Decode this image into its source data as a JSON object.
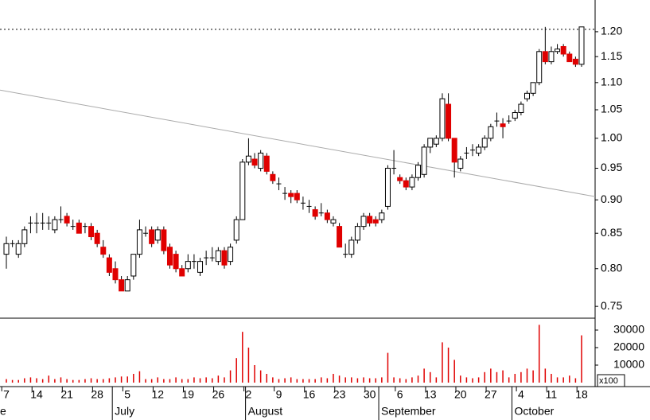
{
  "chart_data": {
    "type": "candlestick",
    "log_scale": true,
    "ylim": [
      0.735,
      1.267
    ],
    "yticks": [
      0.75,
      {
        "value": 0.8,
        "label": "0.80"
      },
      0.85,
      {
        "value": 0.9,
        "label": "0.90"
      },
      0.95,
      {
        "value": 1.0,
        "label": "1.00"
      },
      1.05,
      {
        "value": 1.1,
        "label": "1.10"
      },
      1.15,
      {
        "value": 1.2,
        "label": "1.20"
      }
    ],
    "volume_ylim": [
      0,
      36800
    ],
    "volume_yticks": [
      10000,
      20000,
      30000
    ],
    "volume_unit_label": "x100",
    "up_color": "#ffffff",
    "down_color": "#e00000",
    "volume_color": "#e00000",
    "resistance": 1.205,
    "trendline": {
      "start": 1.086,
      "end": 0.905
    },
    "categories": [
      "7",
      null,
      null,
      null,
      null,
      "14",
      null,
      null,
      null,
      null,
      "21",
      null,
      null,
      null,
      null,
      "28",
      null,
      null,
      null,
      null,
      "5",
      null,
      null,
      null,
      null,
      "12",
      null,
      null,
      null,
      null,
      "19",
      null,
      null,
      null,
      null,
      "26",
      null,
      null,
      null,
      null,
      "2",
      null,
      null,
      null,
      null,
      "9",
      null,
      null,
      null,
      null,
      "16",
      null,
      null,
      null,
      null,
      "23",
      null,
      null,
      null,
      null,
      "30",
      null,
      null,
      null,
      null,
      "6",
      null,
      null,
      null,
      null,
      "13",
      null,
      null,
      null,
      null,
      "20",
      null,
      null,
      null,
      null,
      "27",
      null,
      null,
      null,
      null,
      "4",
      null,
      null,
      null,
      null,
      "11",
      null,
      null,
      null,
      null,
      "18"
    ],
    "month_labels": [
      {
        "label": "e",
        "category_index": 0
      },
      {
        "label": "July",
        "category_index": 18
      },
      {
        "label": "August",
        "category_index": 40
      },
      {
        "label": "September",
        "category_index": 62
      },
      {
        "label": "October",
        "category_index": 84
      }
    ],
    "ohlc": [
      [
        0.82,
        0.845,
        0.8,
        0.835
      ],
      [
        0.835,
        0.84,
        0.83,
        0.835
      ],
      [
        0.82,
        0.84,
        0.815,
        0.835
      ],
      [
        0.835,
        0.86,
        0.83,
        0.855
      ],
      [
        0.865,
        0.875,
        0.85,
        0.865
      ],
      [
        0.865,
        0.88,
        0.85,
        0.865
      ],
      [
        0.865,
        0.88,
        0.855,
        0.865
      ],
      [
        0.865,
        0.875,
        0.855,
        0.865
      ],
      [
        0.855,
        0.875,
        0.85,
        0.87
      ],
      [
        0.87,
        0.89,
        0.865,
        0.87
      ],
      [
        0.875,
        0.88,
        0.86,
        0.865
      ],
      [
        0.86,
        0.87,
        0.855,
        0.86
      ],
      [
        0.865,
        0.87,
        0.85,
        0.85
      ],
      [
        0.86,
        0.865,
        0.85,
        0.86
      ],
      [
        0.86,
        0.865,
        0.84,
        0.845
      ],
      [
        0.85,
        0.855,
        0.83,
        0.835
      ],
      [
        0.83,
        0.84,
        0.815,
        0.82
      ],
      [
        0.815,
        0.82,
        0.79,
        0.795
      ],
      [
        0.8,
        0.81,
        0.78,
        0.785
      ],
      [
        0.785,
        0.79,
        0.77,
        0.77
      ],
      [
        0.77,
        0.79,
        0.77,
        0.785
      ],
      [
        0.79,
        0.82,
        0.785,
        0.82
      ],
      [
        0.82,
        0.87,
        0.815,
        0.855
      ],
      [
        0.85,
        0.86,
        0.845,
        0.85
      ],
      [
        0.855,
        0.86,
        0.83,
        0.835
      ],
      [
        0.84,
        0.86,
        0.835,
        0.855
      ],
      [
        0.855,
        0.86,
        0.82,
        0.825
      ],
      [
        0.83,
        0.835,
        0.8,
        0.805
      ],
      [
        0.82,
        0.825,
        0.795,
        0.8
      ],
      [
        0.8,
        0.805,
        0.79,
        0.79
      ],
      [
        0.8,
        0.82,
        0.795,
        0.81
      ],
      [
        0.81,
        0.82,
        0.8,
        0.81
      ],
      [
        0.795,
        0.815,
        0.79,
        0.81
      ],
      [
        0.815,
        0.825,
        0.805,
        0.815
      ],
      [
        0.815,
        0.83,
        0.81,
        0.815
      ],
      [
        0.81,
        0.83,
        0.805,
        0.825
      ],
      [
        0.825,
        0.83,
        0.8,
        0.805
      ],
      [
        0.81,
        0.835,
        0.805,
        0.83
      ],
      [
        0.84,
        0.875,
        0.835,
        0.87
      ],
      [
        0.87,
        0.965,
        0.87,
        0.96
      ],
      [
        0.96,
        1.0,
        0.955,
        0.97
      ],
      [
        0.965,
        0.975,
        0.95,
        0.955
      ],
      [
        0.95,
        0.98,
        0.945,
        0.975
      ],
      [
        0.97,
        0.975,
        0.94,
        0.945
      ],
      [
        0.94,
        0.945,
        0.925,
        0.93
      ],
      [
        0.925,
        0.935,
        0.915,
        0.925
      ],
      [
        0.91,
        0.92,
        0.9,
        0.91
      ],
      [
        0.91,
        0.915,
        0.895,
        0.905
      ],
      [
        0.91,
        0.915,
        0.895,
        0.9
      ],
      [
        0.895,
        0.905,
        0.885,
        0.895
      ],
      [
        0.89,
        0.9,
        0.88,
        0.89
      ],
      [
        0.885,
        0.89,
        0.87,
        0.875
      ],
      [
        0.88,
        0.895,
        0.875,
        0.88
      ],
      [
        0.88,
        0.885,
        0.865,
        0.87
      ],
      [
        0.865,
        0.875,
        0.86,
        0.87
      ],
      [
        0.86,
        0.865,
        0.83,
        0.83
      ],
      [
        0.82,
        0.835,
        0.815,
        0.82
      ],
      [
        0.82,
        0.845,
        0.815,
        0.84
      ],
      [
        0.84,
        0.865,
        0.835,
        0.86
      ],
      [
        0.86,
        0.88,
        0.855,
        0.875
      ],
      [
        0.875,
        0.88,
        0.86,
        0.865
      ],
      [
        0.87,
        0.875,
        0.86,
        0.865
      ],
      [
        0.87,
        0.885,
        0.865,
        0.88
      ],
      [
        0.89,
        0.955,
        0.885,
        0.95
      ],
      [
        0.95,
        0.98,
        0.94,
        0.95
      ],
      [
        0.935,
        0.94,
        0.925,
        0.93
      ],
      [
        0.93,
        0.935,
        0.915,
        0.92
      ],
      [
        0.92,
        0.94,
        0.915,
        0.935
      ],
      [
        0.935,
        0.96,
        0.93,
        0.955
      ],
      [
        0.94,
        0.99,
        0.935,
        0.985
      ],
      [
        0.985,
        1.0,
        0.975,
        1.0
      ],
      [
        0.99,
        1.005,
        0.985,
        1.0
      ],
      [
        1.0,
        1.08,
        0.995,
        1.07
      ],
      [
        1.06,
        1.08,
        0.995,
        1.0
      ],
      [
        1.0,
        1.0,
        0.935,
        0.96
      ],
      [
        0.95,
        0.97,
        0.945,
        0.965
      ],
      [
        0.975,
        0.985,
        0.965,
        0.975
      ],
      [
        0.98,
        0.99,
        0.97,
        0.98
      ],
      [
        0.975,
        0.99,
        0.97,
        0.985
      ],
      [
        0.985,
        1.005,
        0.98,
        1.0
      ],
      [
        1.0,
        1.025,
        0.995,
        1.02
      ],
      [
        1.03,
        1.045,
        1.02,
        1.03
      ],
      [
        1.025,
        1.035,
        1.0,
        1.02
      ],
      [
        1.03,
        1.04,
        1.025,
        1.03
      ],
      [
        1.035,
        1.05,
        1.03,
        1.045
      ],
      [
        1.045,
        1.065,
        1.04,
        1.06
      ],
      [
        1.07,
        1.085,
        1.065,
        1.08
      ],
      [
        1.08,
        1.1,
        1.075,
        1.1
      ],
      [
        1.1,
        1.165,
        1.095,
        1.16
      ],
      [
        1.16,
        1.21,
        1.135,
        1.14
      ],
      [
        1.14,
        1.17,
        1.135,
        1.16
      ],
      [
        1.16,
        1.175,
        1.155,
        1.165
      ],
      [
        1.17,
        1.175,
        1.15,
        1.155
      ],
      [
        1.155,
        1.16,
        1.14,
        1.14
      ],
      [
        1.145,
        1.15,
        1.13,
        1.135
      ],
      [
        1.135,
        1.21,
        1.13,
        1.21
      ]
    ],
    "volume": [
      2000,
      1500,
      1500,
      2500,
      3000,
      2500,
      2000,
      4000,
      2000,
      3000,
      2000,
      1500,
      1500,
      2000,
      2500,
      2000,
      2000,
      2500,
      3000,
      3500,
      3500,
      5000,
      6500,
      2000,
      2000,
      3000,
      2000,
      2000,
      3000,
      2000,
      2000,
      3000,
      2500,
      3000,
      2500,
      4000,
      3000,
      7000,
      14000,
      29000,
      20000,
      10000,
      7000,
      5000,
      3000,
      2000,
      2500,
      3000,
      2000,
      2000,
      2000,
      2000,
      3000,
      2500,
      5000,
      4000,
      3000,
      3000,
      2500,
      3000,
      2500,
      2500,
      3000,
      17000,
      3000,
      2500,
      2000,
      3000,
      4000,
      8000,
      6000,
      3000,
      23000,
      20000,
      13000,
      4000,
      3000,
      2500,
      3000,
      6000,
      8000,
      6000,
      7000,
      3000,
      5000,
      6000,
      8000,
      7000,
      33000,
      8000,
      5000,
      3000,
      3000,
      4000,
      2500,
      27000
    ]
  }
}
